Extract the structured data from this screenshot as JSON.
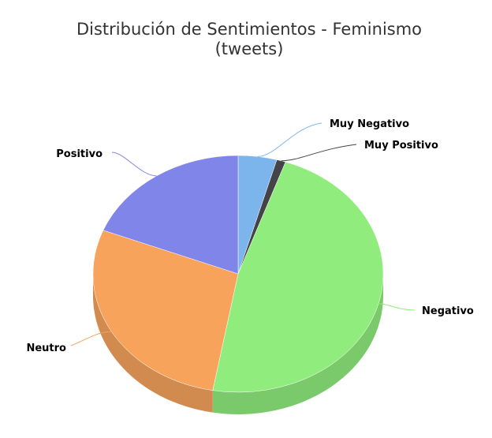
{
  "chart_data": {
    "type": "pie",
    "title": "Distribución de Sentimientos - Feminismo",
    "subtitle": "(tweets)",
    "slices": [
      {
        "label": "Muy Negativo",
        "value": 4.3,
        "color": "#7cb5ec",
        "side": "dark"
      },
      {
        "label": "Muy Positivo",
        "value": 1.0,
        "color": "#434348",
        "side": "dark"
      },
      {
        "label": "Negativo",
        "value": 47.5,
        "color": "#90ed7d",
        "side": "dark"
      },
      {
        "label": "Neutro",
        "value": 28.2,
        "color": "#f7a35c",
        "side": "dark"
      },
      {
        "label": "Positivo",
        "value": 19.0,
        "color": "#8085e9",
        "side": "dark"
      }
    ],
    "style": "3d",
    "legend": "none"
  }
}
